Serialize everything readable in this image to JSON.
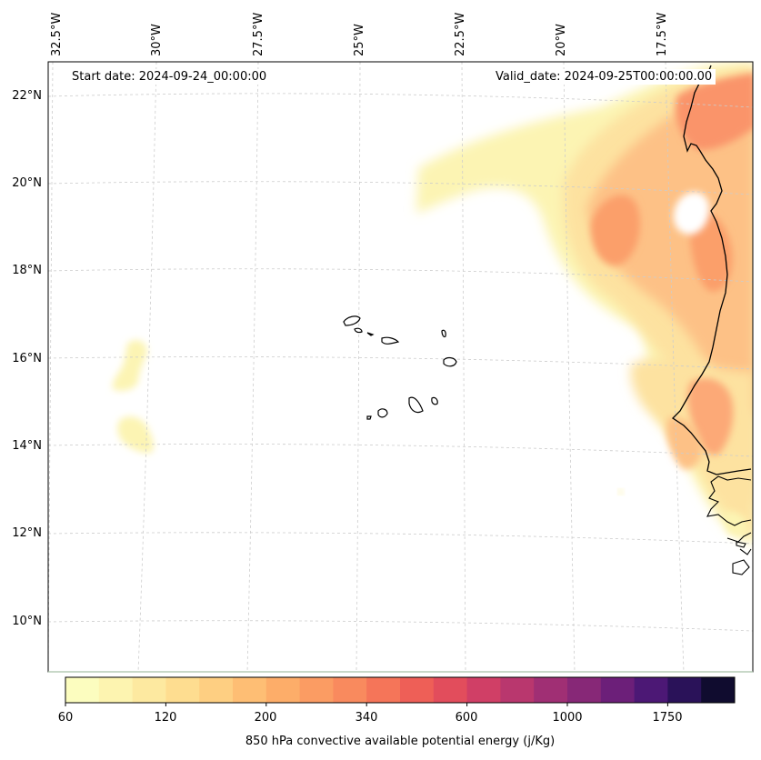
{
  "map": {
    "start_date": "Start date: 2024-09-24_00:00:00",
    "valid_date": "Valid_date: 2024-09-25T00:00:00.00",
    "lon_labels": [
      "32.5°W",
      "30°W",
      "27.5°W",
      "25°W",
      "22.5°W",
      "20°W",
      "17.5°W"
    ],
    "lat_labels": [
      "22°N",
      "20°N",
      "18°N",
      "16°N",
      "14°N",
      "12°N",
      "10°N"
    ],
    "features": [
      "coastline-africa",
      "cape-verde-islands",
      "cape-icon"
    ]
  },
  "colorbar": {
    "title": "850 hPa convective available potential energy (j/Kg)",
    "tick_labels": [
      "60",
      "120",
      "200",
      "340",
      "600",
      "1000",
      "1750"
    ],
    "colors": [
      "#fcfdbf",
      "#fdf4b0",
      "#fde9a0",
      "#fedd90",
      "#fecf82",
      "#febe74",
      "#fdad69",
      "#fb9c63",
      "#f98a5e",
      "#f57559",
      "#ee5f57",
      "#e24d5c",
      "#d03f66",
      "#b9376e",
      "#a02f74",
      "#872877",
      "#6c1f79",
      "#4c1875",
      "#2a1259",
      "#100c2f"
    ]
  }
}
